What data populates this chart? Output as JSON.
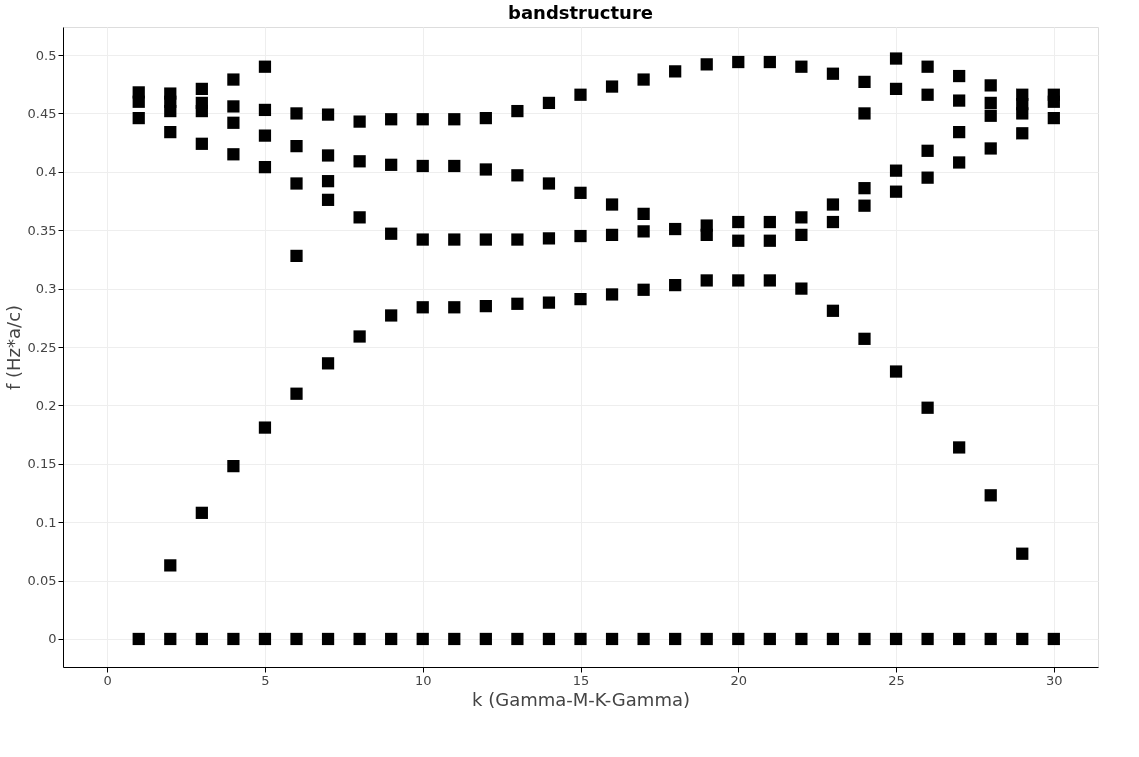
{
  "chart_data": {
    "type": "scatter",
    "title": "bandstructure",
    "xlabel": "k (Gamma-M-K-Gamma)",
    "ylabel": "f (Hz*a/c)",
    "xlim": [
      -1.4,
      31.4
    ],
    "ylim": [
      -0.024,
      0.524
    ],
    "xticks": [
      0,
      5,
      10,
      15,
      20,
      25,
      30
    ],
    "yticks": [
      0,
      0.05,
      0.1,
      0.15,
      0.2,
      0.25,
      0.3,
      0.35,
      0.4,
      0.45,
      0.5
    ],
    "grid": true,
    "marker": "square",
    "series": [
      {
        "color": "#000000",
        "x": [
          1,
          1,
          1,
          1,
          2,
          2,
          2,
          2,
          2,
          2,
          3,
          3,
          3,
          3,
          3,
          3,
          4,
          4,
          4,
          4,
          4,
          4,
          5,
          5,
          5,
          5,
          5,
          5,
          6,
          6,
          6,
          6,
          6,
          6,
          7,
          7,
          7,
          7,
          7,
          7,
          8,
          8,
          8,
          8,
          8,
          9,
          9,
          9,
          9,
          9,
          10,
          10,
          10,
          10,
          10,
          11,
          11,
          11,
          11,
          11,
          12,
          12,
          12,
          12,
          12,
          13,
          13,
          13,
          13,
          13,
          14,
          14,
          14,
          14,
          14,
          15,
          15,
          15,
          15,
          15,
          16,
          16,
          16,
          16,
          16,
          17,
          17,
          17,
          17,
          17,
          18,
          18,
          18,
          18,
          19,
          19,
          19,
          19,
          19,
          20,
          20,
          20,
          20,
          20,
          21,
          21,
          21,
          21,
          21,
          22,
          22,
          22,
          22,
          22,
          23,
          23,
          23,
          23,
          23,
          24,
          24,
          24,
          24,
          24,
          24,
          25,
          25,
          25,
          25,
          25,
          25,
          26,
          26,
          26,
          26,
          26,
          26,
          27,
          27,
          27,
          27,
          27,
          27,
          28,
          28,
          28,
          28,
          28,
          28,
          29,
          29,
          29,
          29,
          29,
          29,
          30,
          30,
          30,
          30
        ],
        "values": [
          0.468,
          0.46,
          0.446,
          0,
          0.467,
          0.46,
          0.452,
          0.434,
          0.063,
          0,
          0.471,
          0.459,
          0.452,
          0.424,
          0.108,
          0,
          0.479,
          0.456,
          0.442,
          0.415,
          0.148,
          0,
          0.49,
          0.453,
          0.431,
          0.404,
          0.181,
          0,
          0.45,
          0.422,
          0.39,
          0.328,
          0.21,
          0,
          0.449,
          0.414,
          0.392,
          0.376,
          0.236,
          0,
          0.443,
          0.409,
          0.361,
          0.259,
          0,
          0.445,
          0.406,
          0.347,
          0.277,
          0,
          0.445,
          0.405,
          0.342,
          0.284,
          0,
          0.445,
          0.405,
          0.342,
          0.284,
          0,
          0.446,
          0.402,
          0.342,
          0.285,
          0,
          0.452,
          0.397,
          0.342,
          0.287,
          0,
          0.459,
          0.39,
          0.343,
          0.288,
          0,
          0.466,
          0.382,
          0.345,
          0.291,
          0,
          0.473,
          0.372,
          0.346,
          0.295,
          0,
          0.479,
          0.364,
          0.349,
          0.299,
          0,
          0.486,
          0.351,
          0.303,
          0,
          0.492,
          0.354,
          0.346,
          0.307,
          0,
          0.494,
          0.357,
          0.341,
          0.307,
          0,
          0.494,
          0.357,
          0.341,
          0.307,
          0,
          0.49,
          0.361,
          0.346,
          0.3,
          0,
          0.484,
          0.372,
          0.357,
          0.281,
          0,
          0.477,
          0.45,
          0.386,
          0.371,
          0.257,
          0,
          0.497,
          0.471,
          0.401,
          0.383,
          0.229,
          0,
          0.49,
          0.466,
          0.418,
          0.395,
          0.198,
          0,
          0.482,
          0.461,
          0.434,
          0.408,
          0.164,
          0,
          0.474,
          0.459,
          0.448,
          0.42,
          0.123,
          0,
          0.466,
          0.458,
          0.45,
          0.433,
          0.073,
          0,
          0.466,
          0.46,
          0.446,
          0
        ]
      }
    ]
  }
}
